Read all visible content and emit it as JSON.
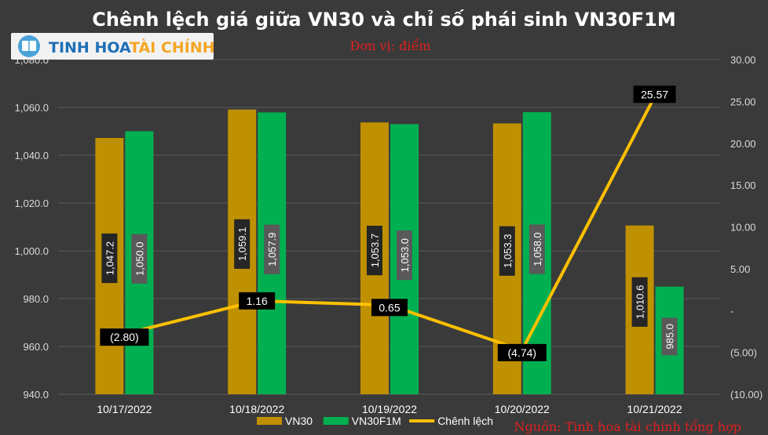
{
  "logo": {
    "part1": "TINH HOA",
    "part2": "TÀI CHÍNH"
  },
  "chart_data": {
    "type": "bar",
    "title": "Chênh lệch giá giữa VN30 và chỉ số phái sinh VN30F1M",
    "unit_note": "Đơn vị: điểm",
    "source_note": "Nguồn: Tinh hoa tài chính tổng hợp",
    "categories": [
      "10/17/2022",
      "10/18/2022",
      "10/19/2022",
      "10/20/2022",
      "10/21/2022"
    ],
    "series": [
      {
        "name": "VN30",
        "kind": "bar",
        "axis": "left",
        "color": "#bf9000",
        "values": [
          1047.2,
          1059.1,
          1053.7,
          1053.3,
          1010.6
        ],
        "labels": [
          "1,047.2",
          "1,059.1",
          "1,053.7",
          "1,053.3",
          "1,010.6"
        ]
      },
      {
        "name": "VN30F1M",
        "kind": "bar",
        "axis": "left",
        "color": "#00b050",
        "values": [
          1050.0,
          1057.9,
          1053.0,
          1058.0,
          985.0
        ],
        "labels": [
          "1,050.0",
          "1,057.9",
          "1,053.0",
          "1,058.0",
          "985.0"
        ]
      },
      {
        "name": "Chênh lệch",
        "kind": "line",
        "axis": "right",
        "color": "#ffc000",
        "values": [
          -2.8,
          1.16,
          0.65,
          -4.74,
          25.57
        ],
        "labels": [
          "(2.80)",
          "1.16",
          "0.65",
          "(4.74)",
          "25.57"
        ]
      }
    ],
    "y_left": {
      "min": 940,
      "max": 1080,
      "step": 20,
      "tick_labels": [
        "940.0",
        "960.0",
        "980.0",
        "1,000.0",
        "1,020.0",
        "1,040.0",
        "1,060.0",
        "1,080.0"
      ]
    },
    "y_right": {
      "min": -10,
      "max": 30,
      "step": 5,
      "tick_labels": [
        "(10.00)",
        "(5.00)",
        "-",
        "5.00",
        "10.00",
        "15.00",
        "20.00",
        "25.00",
        "30.00"
      ]
    },
    "grid": true,
    "legend_position": "bottom"
  }
}
